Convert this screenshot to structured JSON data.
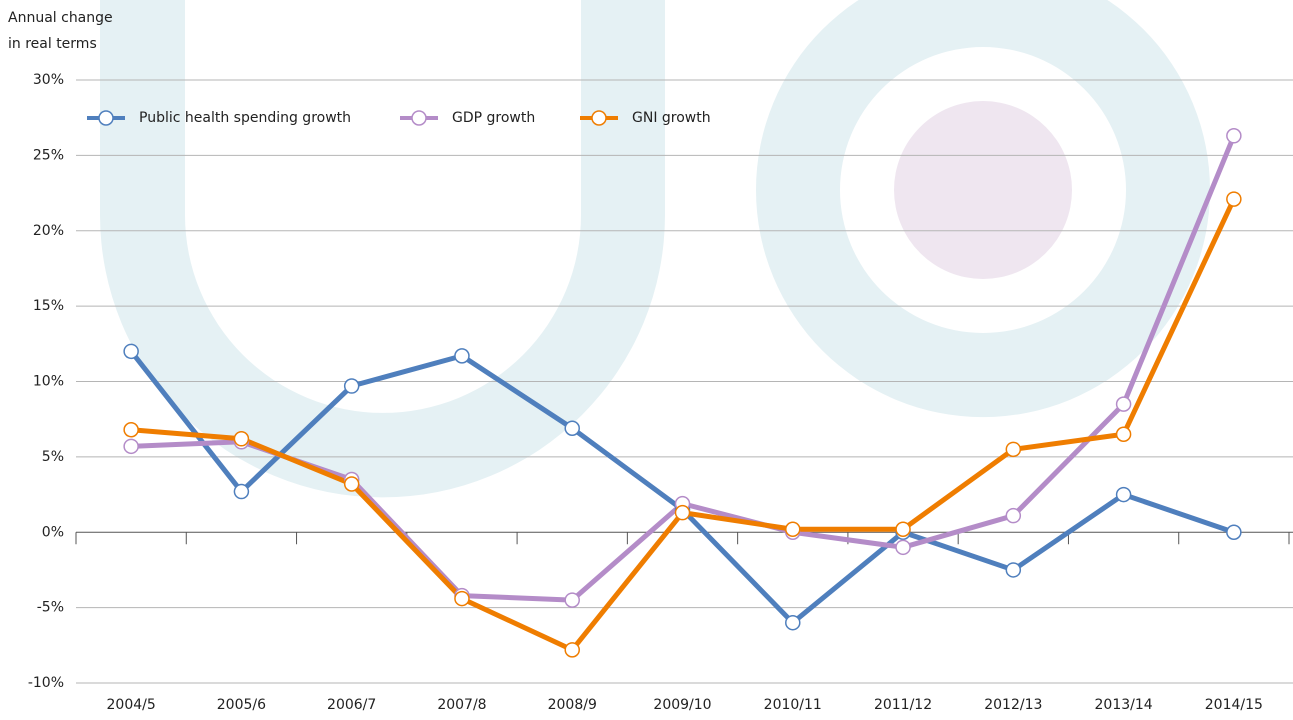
{
  "chart_data": {
    "type": "line",
    "y_label": [
      "Annual change",
      "in real terms"
    ],
    "categories": [
      "2004/5",
      "2005/6",
      "2006/7",
      "2007/8",
      "2008/9",
      "2009/10",
      "2010/11",
      "2011/12",
      "2012/13",
      "2013/14",
      "2014/15"
    ],
    "series": [
      {
        "name": "Public health spending growth",
        "color": "#4f7fbd",
        "values": [
          12,
          2.7,
          9.7,
          11.7,
          6.9,
          1.5,
          -6.0,
          0,
          -2.5,
          2.5,
          0
        ]
      },
      {
        "name": "GDP growth",
        "color": "#b48cc8",
        "values": [
          5.7,
          6.0,
          3.5,
          -4.2,
          -4.5,
          1.9,
          0,
          -1.0,
          1.1,
          8.5,
          26.3
        ]
      },
      {
        "name": "GNI growth",
        "color": "#ef7d00",
        "values": [
          6.8,
          6.2,
          3.2,
          -4.4,
          -7.8,
          1.3,
          0.2,
          0.2,
          5.5,
          6.5,
          22.1
        ]
      }
    ],
    "ylim": [
      -10,
      30
    ],
    "yticks": [
      {
        "value": -10,
        "label": "-10%"
      },
      {
        "value": -5,
        "label": "-5%"
      },
      {
        "value": 0,
        "label": "0%"
      },
      {
        "value": 5,
        "label": "5%"
      },
      {
        "value": 10,
        "label": "10%"
      },
      {
        "value": 15,
        "label": "15%"
      },
      {
        "value": 20,
        "label": "20%"
      },
      {
        "value": 25,
        "label": "25%"
      },
      {
        "value": 30,
        "label": "30%"
      }
    ],
    "grid": true,
    "legend": "top-left"
  }
}
